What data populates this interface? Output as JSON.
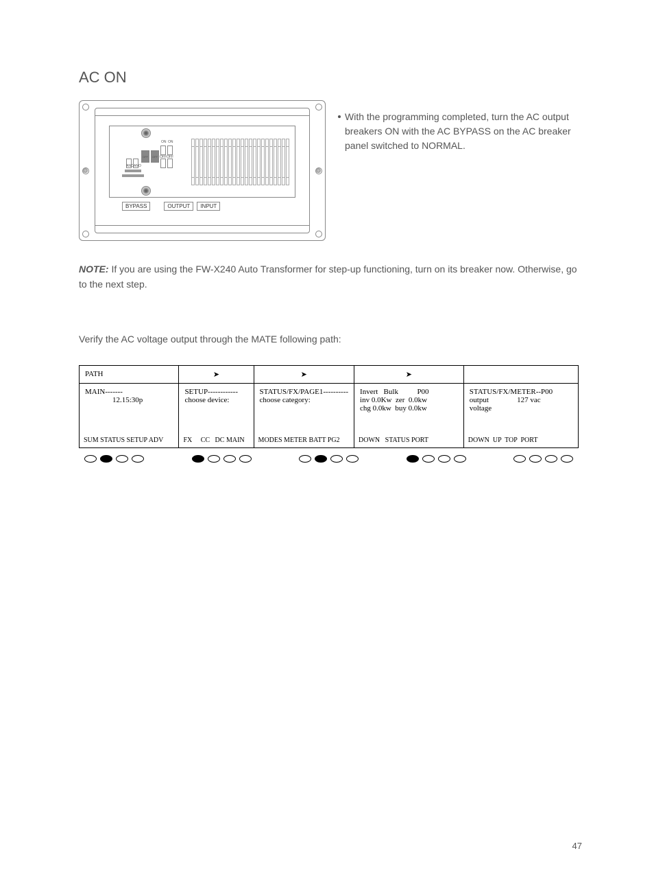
{
  "heading": "AC ON",
  "breakerLabels": {
    "bypass": "BYPASS",
    "output": "OUTPUT",
    "input": "INPUT",
    "on": "ON",
    "off": "OFF",
    "ano": "ANO"
  },
  "bullet": "With the programming completed, turn the AC output breakers ON with the AC BYPASS on the AC breaker panel switched to NORMAL.",
  "note": {
    "label": "NOTE:",
    "text": " If you are using the FW-X240 Auto Transformer for step-up functioning, turn on its breaker now. Otherwise, go to the next step."
  },
  "verify": "Verify the AC voltage output through the MATE following path:",
  "table": {
    "header": {
      "c1": "PATH",
      "arrow": "➤"
    },
    "row2": {
      "c1_l1": "MAIN-------",
      "c1_l2": "12.15:30p",
      "c2_l1": "SETUP------------",
      "c2_l2": "choose device:",
      "c3_l1": "STATUS/FX/PAGE1----------",
      "c3_l2": "choose category:",
      "c4_l1": "Invert   Bulk          P00",
      "c4_l2": "inv 0.0Kw  zer  0.0kw",
      "c4_l3": "chg 0.0kw  buy 0.0kw",
      "c5_l1": "STATUS/FX/METER--P00",
      "c5_l2": "output               127 vac",
      "c5_l3": "voltage"
    },
    "row3": {
      "c1": "SUM STATUS SETUP ADV",
      "c2": "FX     CC   DC MAIN",
      "c3": "MODES METER BATT PG2",
      "c4": "DOWN   STATUS PORT",
      "c5": "DOWN  UP  TOP  PORT"
    }
  },
  "ovals": [
    [
      false,
      true,
      false,
      false
    ],
    [
      true,
      false,
      false,
      false
    ],
    [
      false,
      true,
      false,
      false
    ],
    [
      true,
      false,
      false,
      false
    ],
    [
      false,
      false,
      false,
      false
    ]
  ],
  "pageNumber": "47"
}
